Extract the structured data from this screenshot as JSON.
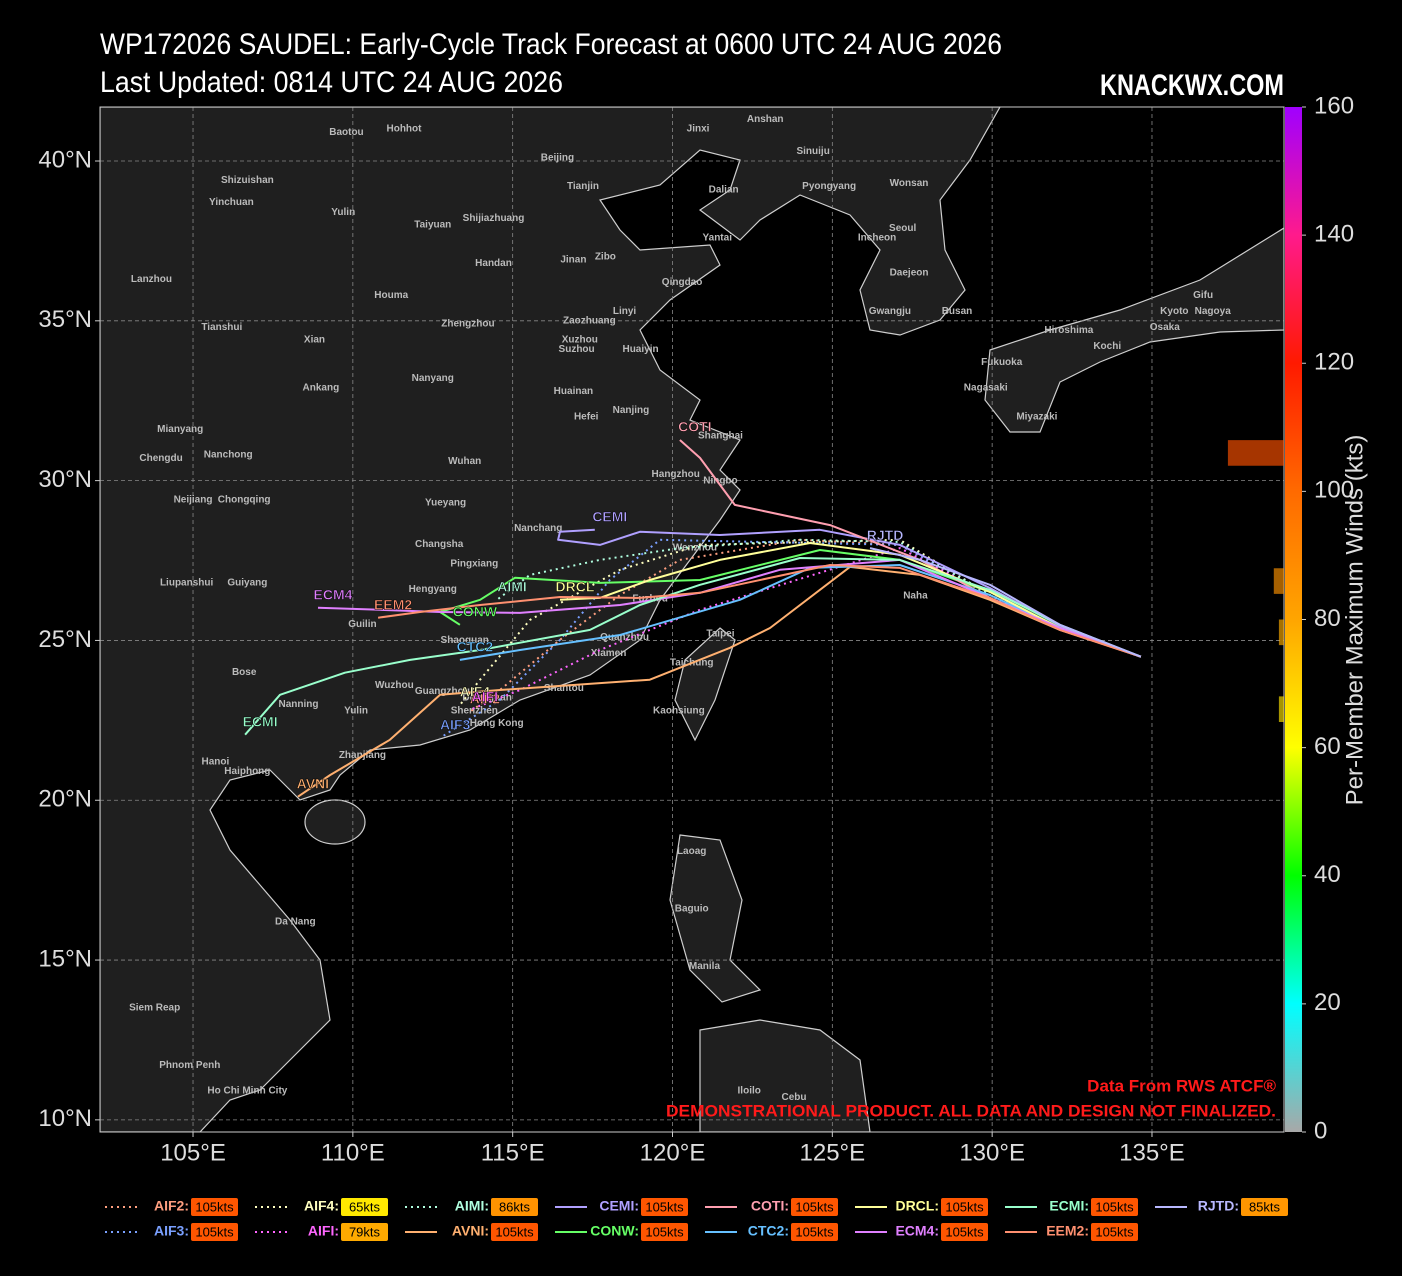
{
  "chart_data": {
    "type": "map",
    "title": "WP172026 SAUDEL: Early-Cycle Track Forecast at 0600 UTC 24 AUG 2026",
    "subtitle": "Last Updated: 0814 UTC 24 AUG 2026",
    "site": "KNACKWX.COM",
    "xlim": [
      102.09,
      139.13
    ],
    "ylim": [
      9.62,
      41.69
    ],
    "xticks": [
      {
        "value": 105,
        "label": "105°E"
      },
      {
        "value": 110,
        "label": "110°E"
      },
      {
        "value": 115,
        "label": "115°E"
      },
      {
        "value": 120,
        "label": "120°E"
      },
      {
        "value": 125,
        "label": "125°E"
      },
      {
        "value": 130,
        "label": "130°E"
      },
      {
        "value": 135,
        "label": "135°E"
      }
    ],
    "yticks": [
      {
        "value": 10,
        "label": "10°N"
      },
      {
        "value": 15,
        "label": "15°N"
      },
      {
        "value": 20,
        "label": "20°N"
      },
      {
        "value": 25,
        "label": "25°N"
      },
      {
        "value": 30,
        "label": "30°N"
      },
      {
        "value": 35,
        "label": "35°N"
      },
      {
        "value": 40,
        "label": "40°N"
      }
    ],
    "grid": true,
    "colorbar": {
      "label": "Per-Member Maximum Winds (kts)",
      "lim": [
        0,
        160
      ],
      "ticks": [
        0,
        20,
        40,
        60,
        80,
        100,
        120,
        140,
        160
      ]
    },
    "series": [
      {
        "name": "AIF2",
        "legend_label": "AIF2:",
        "color": "#ff9f80",
        "style": "dotted",
        "value": 105,
        "value_label": "105kts",
        "lon": [
          134.65,
          132.12,
          129.93,
          127.11,
          123.99,
          120.23,
          118.36,
          116.48,
          114.6,
          113.66
        ],
        "lat": [
          24.49,
          25.39,
          26.42,
          27.99,
          28.15,
          27.52,
          26.42,
          25.02,
          23.45,
          22.76
        ]
      },
      {
        "name": "AIF3",
        "legend_label": "AIF3:",
        "color": "#7aa0ff",
        "style": "dotted",
        "value": 105,
        "value_label": "105kts",
        "lon": [
          134.65,
          132.12,
          129.93,
          127.11,
          119.61,
          118.04,
          116.48,
          114.6,
          112.73
        ],
        "lat": [
          24.49,
          25.39,
          26.42,
          27.99,
          28.15,
          26.89,
          25.02,
          23.14,
          21.95
        ]
      },
      {
        "name": "AIF4",
        "legend_label": "AIF4:",
        "color": "#ffffc0",
        "style": "dotted",
        "value": 65,
        "value_label": "65kts",
        "lon": [
          134.65,
          132.12,
          129.93,
          127.11,
          120.86,
          118.36,
          115.54,
          113.98,
          113.35
        ],
        "lat": [
          24.49,
          25.39,
          26.42,
          28.15,
          27.99,
          27.21,
          25.64,
          23.77,
          22.98
        ]
      },
      {
        "name": "AIFI",
        "legend_label": "AIFI:",
        "color": "#ff66ff",
        "style": "dotted",
        "value": 79,
        "value_label": "79kts",
        "lon": [
          134.65,
          132.12,
          129.93,
          127.11,
          120.86,
          117.73,
          115.23,
          113.66
        ],
        "lat": [
          24.49,
          25.39,
          26.42,
          27.89,
          25.96,
          24.7,
          23.45,
          22.83
        ]
      },
      {
        "name": "AIMI",
        "legend_label": "AIMI:",
        "color": "#b0ffe0",
        "style": "dotted",
        "value": 86,
        "value_label": "86kts",
        "lon": [
          134.65,
          132.12,
          129.93,
          127.11,
          123.99,
          120.23,
          117.73,
          115.54,
          114.51
        ],
        "lat": [
          24.49,
          25.39,
          26.42,
          28.08,
          28.15,
          27.89,
          27.52,
          27.05,
          26.27
        ]
      },
      {
        "name": "AVNI",
        "legend_label": "AVNI:",
        "color": "#ffb070",
        "style": "solid",
        "value": 105,
        "value_label": "105kts",
        "lon": [
          134.65,
          132.12,
          129.93,
          127.74,
          125.55,
          123.05,
          121.8,
          119.29,
          114.6,
          112.73,
          111.16,
          109.29,
          108.28
        ],
        "lat": [
          24.49,
          25.33,
          26.27,
          27.05,
          27.3,
          25.39,
          24.77,
          23.77,
          23.45,
          23.3,
          21.89,
          20.79,
          20.11
        ]
      },
      {
        "name": "CEMI",
        "legend_label": "CEMI:",
        "color": "#b0a0ff",
        "style": "solid",
        "value": 105,
        "value_label": "105kts",
        "lon": [
          134.65,
          132.12,
          129.93,
          127.11,
          124.61,
          121.48,
          118.98,
          117.73,
          116.42,
          116.48,
          117.57
        ],
        "lat": [
          24.49,
          25.46,
          26.64,
          27.99,
          28.46,
          28.3,
          28.4,
          27.99,
          28.15,
          28.4,
          28.46
        ]
      },
      {
        "name": "CONW",
        "legend_label": "CONW:",
        "color": "#66ff66",
        "style": "solid",
        "value": 105,
        "value_label": "105kts",
        "lon": [
          134.65,
          132.12,
          129.93,
          127.11,
          124.61,
          120.86,
          117.73,
          115.07,
          113.98,
          112.73,
          113.35
        ],
        "lat": [
          24.49,
          25.39,
          26.52,
          27.52,
          27.83,
          26.89,
          26.8,
          26.96,
          26.27,
          25.89,
          25.49
        ]
      },
      {
        "name": "COTI",
        "legend_label": "COTI:",
        "color": "#ff9fb0",
        "style": "solid",
        "value": 105,
        "value_label": "105kts",
        "lon": [
          134.65,
          132.12,
          129.93,
          127.74,
          124.93,
          121.95,
          120.86,
          120.23
        ],
        "lat": [
          24.49,
          25.39,
          26.33,
          27.52,
          28.61,
          29.24,
          30.71,
          31.27
        ]
      },
      {
        "name": "CTC2",
        "legend_label": "CTC2:",
        "color": "#66c0ff",
        "style": "solid",
        "value": 105,
        "value_label": "105kts",
        "lon": [
          134.65,
          132.12,
          129.93,
          127.11,
          124.3,
          122.11,
          118.36,
          115.23,
          113.35
        ],
        "lat": [
          24.49,
          25.39,
          26.42,
          27.36,
          27.27,
          26.27,
          25.17,
          24.7,
          24.39
        ]
      },
      {
        "name": "DRCL",
        "legend_label": "DRCL:",
        "color": "#ffff99",
        "style": "solid",
        "value": 105,
        "value_label": "105kts",
        "lon": [
          134.65,
          132.12,
          129.93,
          127.11,
          124.3,
          121.48,
          119.29,
          117.73,
          116.48
        ],
        "lat": [
          24.49,
          25.39,
          26.52,
          27.68,
          28.05,
          27.52,
          26.89,
          26.33,
          26.27
        ]
      },
      {
        "name": "ECM4",
        "legend_label": "ECM4:",
        "color": "#e080ff",
        "style": "solid",
        "value": 105,
        "value_label": "105kts",
        "lon": [
          134.65,
          132.12,
          129.93,
          127.11,
          123.36,
          120.86,
          118.36,
          115.23,
          112.73,
          110.85,
          108.91
        ],
        "lat": [
          24.49,
          25.39,
          26.33,
          27.52,
          27.21,
          26.49,
          26.11,
          25.86,
          25.89,
          25.96,
          26.02
        ]
      },
      {
        "name": "ECMI",
        "legend_label": "ECMI:",
        "color": "#99ffcc",
        "style": "solid",
        "value": 105,
        "value_label": "105kts",
        "lon": [
          134.65,
          132.12,
          129.93,
          127.11,
          123.99,
          120.86,
          118.98,
          117.42,
          113.98,
          111.79,
          109.75,
          107.72,
          106.63
        ],
        "lat": [
          24.49,
          25.49,
          26.58,
          27.52,
          27.58,
          26.74,
          26.11,
          25.33,
          24.7,
          24.39,
          23.99,
          23.3,
          22.05
        ]
      },
      {
        "name": "EEM2",
        "legend_label": "EEM2:",
        "color": "#ff9070",
        "style": "solid",
        "value": 105,
        "value_label": "105kts",
        "lon": [
          134.65,
          132.12,
          129.93,
          127.11,
          124.93,
          120.86,
          118.98,
          116.48,
          113.98,
          112.1,
          110.79
        ],
        "lat": [
          24.49,
          25.33,
          26.33,
          27.27,
          27.36,
          26.49,
          26.33,
          26.36,
          26.11,
          25.89,
          25.71
        ]
      },
      {
        "name": "RJTD",
        "legend_label": "RJTD:",
        "color": "#b8b8ff",
        "style": "solid",
        "value": 85,
        "value_label": "85kts",
        "lon": [
          134.65,
          132.12,
          129.93,
          127.74,
          126.18
        ],
        "lat": [
          24.49,
          25.49,
          26.74,
          27.52,
          27.89
        ]
      }
    ],
    "cities": [
      {
        "name": "Baotou",
        "lon": 109.8,
        "lat": 40.9
      },
      {
        "name": "Hohhot",
        "lon": 111.6,
        "lat": 41.0
      },
      {
        "name": "Jinxi",
        "lon": 120.8,
        "lat": 41.0
      },
      {
        "name": "Anshan",
        "lon": 122.9,
        "lat": 41.3
      },
      {
        "name": "Sinuiju",
        "lon": 124.4,
        "lat": 40.3
      },
      {
        "name": "Beijing",
        "lon": 116.4,
        "lat": 40.1
      },
      {
        "name": "Tianjin",
        "lon": 117.2,
        "lat": 39.2
      },
      {
        "name": "Dalian",
        "lon": 121.6,
        "lat": 39.1
      },
      {
        "name": "Pyongyang",
        "lon": 124.9,
        "lat": 39.2
      },
      {
        "name": "Wonsan",
        "lon": 127.4,
        "lat": 39.3
      },
      {
        "name": "Shizuishan",
        "lon": 106.7,
        "lat": 39.4
      },
      {
        "name": "Yinchuan",
        "lon": 106.2,
        "lat": 38.7
      },
      {
        "name": "Yulin",
        "lon": 109.7,
        "lat": 38.4
      },
      {
        "name": "Taiyuan",
        "lon": 112.5,
        "lat": 38.0
      },
      {
        "name": "Shijiazhuang",
        "lon": 114.4,
        "lat": 38.2
      },
      {
        "name": "Yantai",
        "lon": 121.4,
        "lat": 37.6
      },
      {
        "name": "Seoul",
        "lon": 127.2,
        "lat": 37.9
      },
      {
        "name": "Incheon",
        "lon": 126.4,
        "lat": 37.6
      },
      {
        "name": "Handan",
        "lon": 114.4,
        "lat": 36.8
      },
      {
        "name": "Jinan",
        "lon": 116.9,
        "lat": 36.9
      },
      {
        "name": "Zibo",
        "lon": 117.9,
        "lat": 37.0
      },
      {
        "name": "Qingdao",
        "lon": 120.3,
        "lat": 36.2
      },
      {
        "name": "Daejeon",
        "lon": 127.4,
        "lat": 36.5
      },
      {
        "name": "Lanzhou",
        "lon": 103.7,
        "lat": 36.3
      },
      {
        "name": "Houma",
        "lon": 111.2,
        "lat": 35.8
      },
      {
        "name": "Linyi",
        "lon": 118.5,
        "lat": 35.3
      },
      {
        "name": "Gwangju",
        "lon": 126.8,
        "lat": 35.3
      },
      {
        "name": "Busan",
        "lon": 128.9,
        "lat": 35.3
      },
      {
        "name": "Gifu",
        "lon": 136.6,
        "lat": 35.8
      },
      {
        "name": "Kyoto",
        "lon": 135.7,
        "lat": 35.3
      },
      {
        "name": "Nagoya",
        "lon": 136.9,
        "lat": 35.3
      },
      {
        "name": "Osaka",
        "lon": 135.4,
        "lat": 34.8
      },
      {
        "name": "Tianshui",
        "lon": 105.9,
        "lat": 34.8
      },
      {
        "name": "Xian",
        "lon": 108.8,
        "lat": 34.4
      },
      {
        "name": "Zhengzhou",
        "lon": 113.6,
        "lat": 34.9
      },
      {
        "name": "Zaozhuang",
        "lon": 117.4,
        "lat": 35.0
      },
      {
        "name": "Xuzhou",
        "lon": 117.1,
        "lat": 34.4
      },
      {
        "name": "Hiroshima",
        "lon": 132.4,
        "lat": 34.7
      },
      {
        "name": "Kochi",
        "lon": 133.6,
        "lat": 34.2
      },
      {
        "name": "Fukuoka",
        "lon": 130.3,
        "lat": 33.7
      },
      {
        "name": "Suzhou",
        "lon": 117.0,
        "lat": 34.1
      },
      {
        "name": "Huaiyin",
        "lon": 119.0,
        "lat": 34.1
      },
      {
        "name": "Ankang",
        "lon": 109.0,
        "lat": 32.9
      },
      {
        "name": "Nanyang",
        "lon": 112.5,
        "lat": 33.2
      },
      {
        "name": "Huainan",
        "lon": 116.9,
        "lat": 32.8
      },
      {
        "name": "Nagasaki",
        "lon": 129.8,
        "lat": 32.9
      },
      {
        "name": "Miyazaki",
        "lon": 131.4,
        "lat": 32.0
      },
      {
        "name": "Hefei",
        "lon": 117.3,
        "lat": 32.0
      },
      {
        "name": "Nanjing",
        "lon": 118.7,
        "lat": 32.2
      },
      {
        "name": "Mianyang",
        "lon": 104.6,
        "lat": 31.6
      },
      {
        "name": "Shanghai",
        "lon": 121.5,
        "lat": 31.4
      },
      {
        "name": "Chengdu",
        "lon": 104.0,
        "lat": 30.7
      },
      {
        "name": "Nanchong",
        "lon": 106.1,
        "lat": 30.8
      },
      {
        "name": "Wuhan",
        "lon": 113.5,
        "lat": 30.6
      },
      {
        "name": "Hangzhou",
        "lon": 120.1,
        "lat": 30.2
      },
      {
        "name": "Ningbo",
        "lon": 121.5,
        "lat": 30.0
      },
      {
        "name": "Neijiang",
        "lon": 105.0,
        "lat": 29.4
      },
      {
        "name": "Chongqing",
        "lon": 106.6,
        "lat": 29.4
      },
      {
        "name": "Yueyang",
        "lon": 112.9,
        "lat": 29.3
      },
      {
        "name": "Nanchang",
        "lon": 115.8,
        "lat": 28.5
      },
      {
        "name": "Changsha",
        "lon": 112.7,
        "lat": 28.0
      },
      {
        "name": "Wenzhou",
        "lon": 120.7,
        "lat": 27.9
      },
      {
        "name": "Pingxiang",
        "lon": 113.8,
        "lat": 27.4
      },
      {
        "name": "Hengyang",
        "lon": 112.5,
        "lat": 26.6
      },
      {
        "name": "Liupanshui",
        "lon": 104.8,
        "lat": 26.8
      },
      {
        "name": "Guiyang",
        "lon": 106.7,
        "lat": 26.8
      },
      {
        "name": "Fuzhou",
        "lon": 119.3,
        "lat": 26.3
      },
      {
        "name": "Naha",
        "lon": 127.6,
        "lat": 26.4
      },
      {
        "name": "Guilin",
        "lon": 110.3,
        "lat": 25.5
      },
      {
        "name": "Shaoguan",
        "lon": 113.5,
        "lat": 25.0
      },
      {
        "name": "Quanzhou",
        "lon": 118.5,
        "lat": 25.1
      },
      {
        "name": "Taipei",
        "lon": 121.5,
        "lat": 25.2
      },
      {
        "name": "Xiamen",
        "lon": 118.0,
        "lat": 24.6
      },
      {
        "name": "Taichung",
        "lon": 120.6,
        "lat": 24.3
      },
      {
        "name": "Bose",
        "lon": 106.6,
        "lat": 24.0
      },
      {
        "name": "Wuzhou",
        "lon": 111.3,
        "lat": 23.6
      },
      {
        "name": "Guangzhou",
        "lon": 112.8,
        "lat": 23.4
      },
      {
        "name": "Dongguan",
        "lon": 114.2,
        "lat": 23.2
      },
      {
        "name": "Shantou",
        "lon": 116.6,
        "lat": 23.5
      },
      {
        "name": "Nanning",
        "lon": 108.3,
        "lat": 23.0
      },
      {
        "name": "Yulin",
        "lon": 110.1,
        "lat": 22.8
      },
      {
        "name": "Shenzhen",
        "lon": 113.8,
        "lat": 22.8
      },
      {
        "name": "Kaohsiung",
        "lon": 120.2,
        "lat": 22.8
      },
      {
        "name": "Hong Kong",
        "lon": 114.5,
        "lat": 22.4
      },
      {
        "name": "Hanoi",
        "lon": 105.7,
        "lat": 21.2
      },
      {
        "name": "Haiphong",
        "lon": 106.7,
        "lat": 20.9
      },
      {
        "name": "Zhanjiang",
        "lon": 110.3,
        "lat": 21.4
      },
      {
        "name": "Laoag",
        "lon": 120.6,
        "lat": 18.4
      },
      {
        "name": "Da Nang",
        "lon": 108.2,
        "lat": 16.2
      },
      {
        "name": "Baguio",
        "lon": 120.6,
        "lat": 16.6
      },
      {
        "name": "Manila",
        "lon": 121.0,
        "lat": 14.8
      },
      {
        "name": "Siem Reap",
        "lon": 103.8,
        "lat": 13.5
      },
      {
        "name": "Phnom Penh",
        "lon": 104.9,
        "lat": 11.7
      },
      {
        "name": "Ho Chi Minh City",
        "lon": 106.7,
        "lat": 10.9
      },
      {
        "name": "Iloilo",
        "lon": 122.4,
        "lat": 10.9
      },
      {
        "name": "Cebu",
        "lon": 123.8,
        "lat": 10.7
      }
    ],
    "credit": "Data From RWS ATCF®",
    "disclaimer": "DEMONSTRATIONAL PRODUCT. ALL DATA AND DESIGN NOT FINALIZED."
  }
}
